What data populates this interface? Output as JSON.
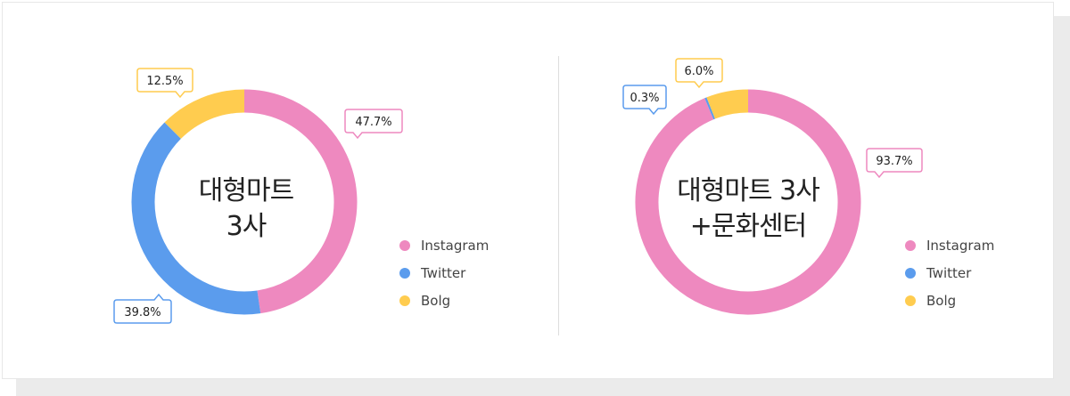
{
  "colors": {
    "instagram": "#ee89bf",
    "twitter": "#5b9ced",
    "blog": "#ffcc4f"
  },
  "legend": [
    "Instagram",
    "Twitter",
    "Bolg"
  ],
  "chart_data": [
    {
      "type": "pie",
      "variant": "donut",
      "center_label_lines": [
        "대형마트",
        "3사"
      ],
      "categories": [
        "Instagram",
        "Twitter",
        "Bolg"
      ],
      "values": [
        47.7,
        39.8,
        12.5
      ],
      "value_labels": [
        "47.7%",
        "39.8%",
        "12.5%"
      ],
      "legend_position": "right"
    },
    {
      "type": "pie",
      "variant": "donut",
      "center_label_lines": [
        "대형마트 3사",
        "+문화센터"
      ],
      "categories": [
        "Instagram",
        "Twitter",
        "Bolg"
      ],
      "values": [
        93.7,
        0.3,
        6.0
      ],
      "value_labels": [
        "93.7%",
        "0.3%",
        "6.0%"
      ],
      "legend_position": "right"
    }
  ]
}
